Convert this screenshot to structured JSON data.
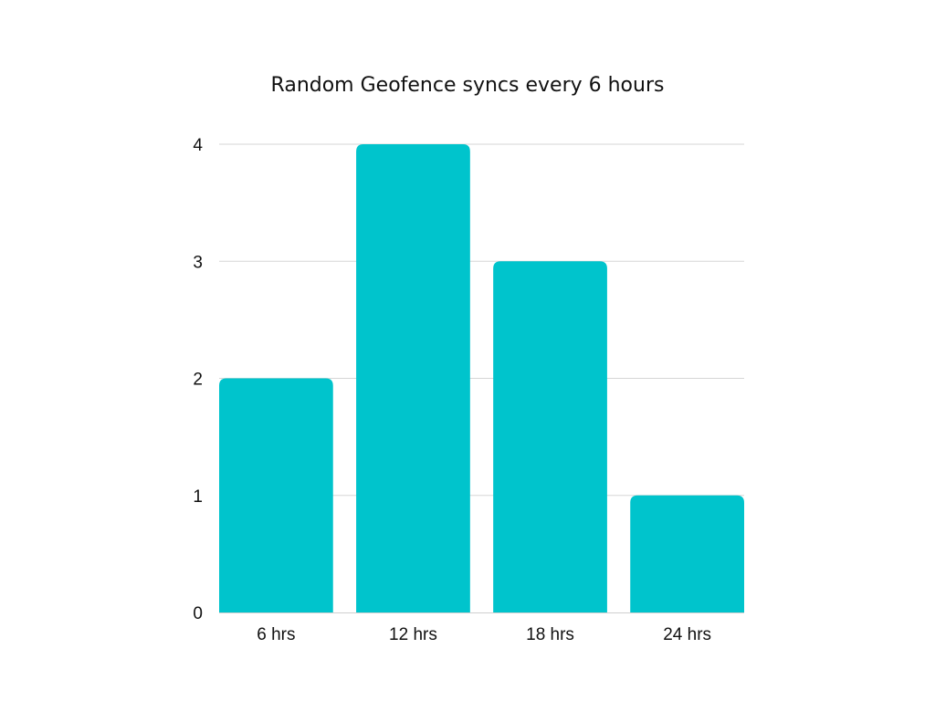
{
  "chart_data": {
    "type": "bar",
    "title": "Random Geofence syncs every 6 hours",
    "xlabel": "",
    "ylabel": "",
    "categories": [
      "6 hrs",
      "12 hrs",
      "18 hrs",
      "24 hrs"
    ],
    "values": [
      2,
      4,
      3,
      1
    ],
    "ylim": [
      0,
      4
    ],
    "yticks": [
      "0",
      "1",
      "2",
      "3",
      "4"
    ],
    "grid": true,
    "legend": "none",
    "bar_color": "#00C4CC"
  }
}
